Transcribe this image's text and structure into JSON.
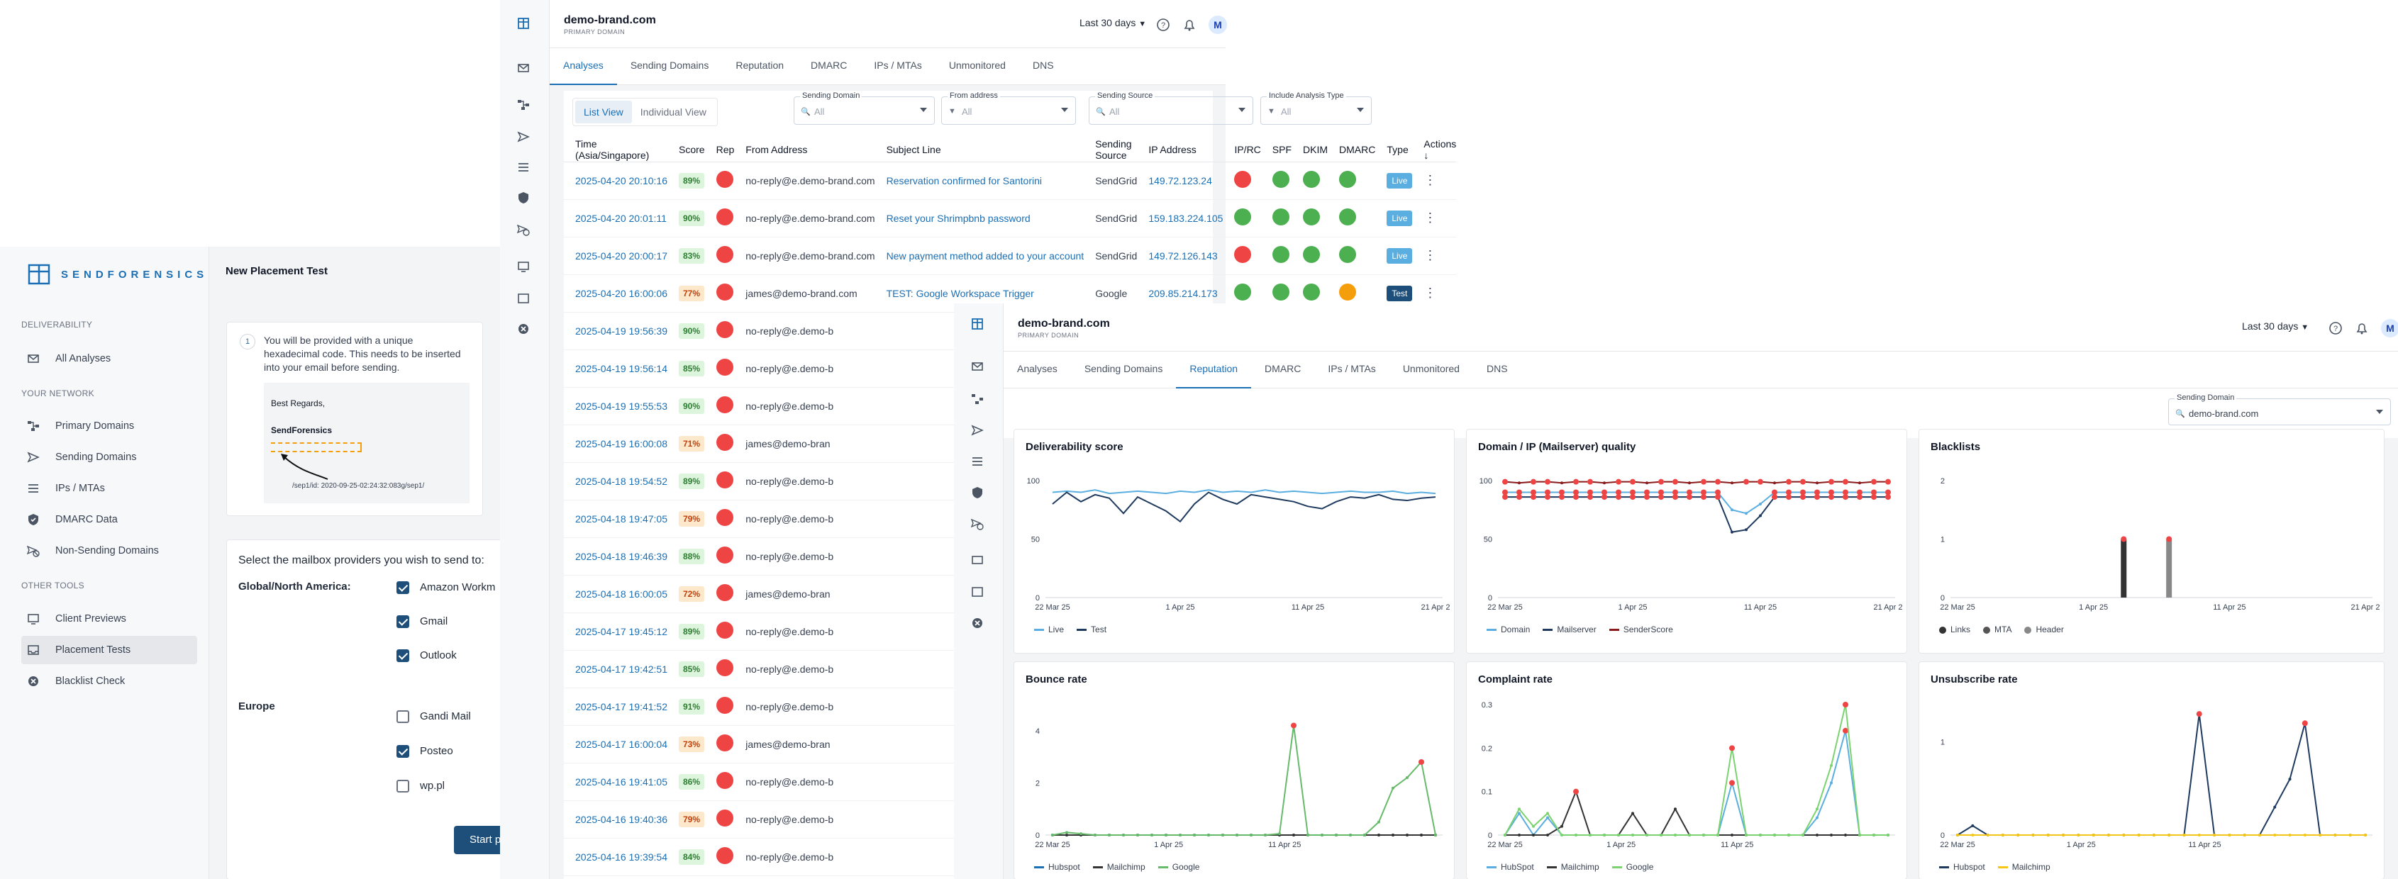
{
  "placement": {
    "logo_text": "SENDFORENSICS",
    "title": "New Placement Test",
    "sections": [
      "DELIVERABILITY",
      "YOUR NETWORK",
      "OTHER TOOLS"
    ],
    "nav": [
      {
        "label": "All Analyses",
        "icon": "envelope-icon"
      },
      {
        "label": "Primary Domains",
        "icon": "network-icon"
      },
      {
        "label": "Sending Domains",
        "icon": "send-icon"
      },
      {
        "label": "IPs / MTAs",
        "icon": "list-icon"
      },
      {
        "label": "DMARC Data",
        "icon": "shield-icon"
      },
      {
        "label": "Non-Sending Domains",
        "icon": "no-send-icon"
      },
      {
        "label": "Client Previews",
        "icon": "monitor-icon"
      },
      {
        "label": "Placement Tests",
        "icon": "inbox-icon"
      },
      {
        "label": "Blacklist Check",
        "icon": "blocked-icon"
      }
    ],
    "step_number": "1",
    "step_text": "You will be provided with a unique hexadecimal code. This needs to be inserted into your email before sending.",
    "example_regards": "Best Regards,",
    "example_company": "SendForensics",
    "example_code": "/sep1/id: 2020-09-25-02:24:32:083g/sep1/",
    "select_prompt": "Select the mailbox providers you wish to send to:",
    "groups": [
      {
        "name": "Global/North America:",
        "providers": [
          {
            "label": "Amazon Workm",
            "checked": true
          },
          {
            "label": "Gmail",
            "checked": true
          },
          {
            "label": "Outlook",
            "checked": true
          }
        ]
      },
      {
        "name": "Europe",
        "providers": [
          {
            "label": "Gandi Mail",
            "checked": false
          },
          {
            "label": "Posteo",
            "checked": true
          },
          {
            "label": "wp.pl",
            "checked": false
          }
        ]
      }
    ],
    "start_button": "Start p"
  },
  "analyses": {
    "domain": "demo-brand.com",
    "domain_sub": "PRIMARY DOMAIN",
    "range": "Last 30 days",
    "avatar": "M",
    "tabs": [
      "Analyses",
      "Sending Domains",
      "Reputation",
      "DMARC",
      "IPs / MTAs",
      "Unmonitored",
      "DNS"
    ],
    "active_tab": "Analyses",
    "views": [
      "List View",
      "Individual View"
    ],
    "filters": [
      {
        "label": "Sending Domain",
        "value": "All",
        "icon": "search-icon"
      },
      {
        "label": "From address",
        "value": "All",
        "icon": "filter-icon"
      },
      {
        "label": "Sending Source",
        "value": "All",
        "icon": "search-icon"
      },
      {
        "label": "Include Analysis Type",
        "value": "All",
        "icon": "filter-icon"
      }
    ],
    "columns": [
      "Time (Asia/Singapore)",
      "Score",
      "Rep",
      "From Address",
      "Subject Line",
      "Sending Source",
      "IP Address",
      "IP/RC",
      "SPF",
      "DKIM",
      "DMARC",
      "Type",
      "Actions"
    ],
    "rows": [
      {
        "time": "2025-04-20 20:10:16",
        "score": "89%",
        "from": "no-reply@e.demo-brand.com",
        "subject": "Reservation confirmed for Santorini",
        "source": "SendGrid",
        "ip": "149.72.123.24",
        "iprc": "red",
        "spf": "green",
        "dkim": "green",
        "dmarc": "green",
        "type": "Live"
      },
      {
        "time": "2025-04-20 20:01:11",
        "score": "90%",
        "from": "no-reply@e.demo-brand.com",
        "subject": "Reset your Shrimpbnb password",
        "source": "SendGrid",
        "ip": "159.183.224.105",
        "iprc": "green",
        "spf": "green",
        "dkim": "green",
        "dmarc": "green",
        "type": "Live"
      },
      {
        "time": "2025-04-20 20:00:17",
        "score": "83%",
        "from": "no-reply@e.demo-brand.com",
        "subject": "New payment method added to your account",
        "source": "SendGrid",
        "ip": "149.72.126.143",
        "iprc": "red",
        "spf": "green",
        "dkim": "green",
        "dmarc": "green",
        "type": "Live"
      },
      {
        "time": "2025-04-20 16:00:06",
        "score": "77%",
        "from": "james@demo-brand.com",
        "subject": "TEST: Google Workspace Trigger",
        "source": "Google",
        "ip": "209.85.214.173",
        "iprc": "green",
        "spf": "green",
        "dkim": "green",
        "dmarc": "orange",
        "type": "Test"
      },
      {
        "time": "2025-04-19 19:56:39",
        "score": "90%",
        "from": "no-reply@e.demo-b"
      },
      {
        "time": "2025-04-19 19:56:14",
        "score": "85%",
        "from": "no-reply@e.demo-b"
      },
      {
        "time": "2025-04-19 19:55:53",
        "score": "90%",
        "from": "no-reply@e.demo-b"
      },
      {
        "time": "2025-04-19 16:00:08",
        "score": "71%",
        "from": "james@demo-bran"
      },
      {
        "time": "2025-04-18 19:54:52",
        "score": "89%",
        "from": "no-reply@e.demo-b"
      },
      {
        "time": "2025-04-18 19:47:05",
        "score": "79%",
        "from": "no-reply@e.demo-b"
      },
      {
        "time": "2025-04-18 19:46:39",
        "score": "88%",
        "from": "no-reply@e.demo-b"
      },
      {
        "time": "2025-04-18 16:00:05",
        "score": "72%",
        "from": "james@demo-bran"
      },
      {
        "time": "2025-04-17 19:45:12",
        "score": "89%",
        "from": "no-reply@e.demo-b"
      },
      {
        "time": "2025-04-17 19:42:51",
        "score": "85%",
        "from": "no-reply@e.demo-b"
      },
      {
        "time": "2025-04-17 19:41:52",
        "score": "91%",
        "from": "no-reply@e.demo-b"
      },
      {
        "time": "2025-04-17 16:00:04",
        "score": "73%",
        "from": "james@demo-bran"
      },
      {
        "time": "2025-04-16 19:41:05",
        "score": "86%",
        "from": "no-reply@e.demo-b"
      },
      {
        "time": "2025-04-16 19:40:36",
        "score": "79%",
        "from": "no-reply@e.demo-b"
      },
      {
        "time": "2025-04-16 19:39:54",
        "score": "84%",
        "from": "no-reply@e.demo-b"
      }
    ],
    "status_colors": {
      "red": "#ef4444",
      "green": "#4caf50",
      "orange": "#f59e0b",
      "live": "#5aaee0",
      "test": "#1e4f7a"
    }
  },
  "reputation": {
    "domain": "demo-brand.com",
    "domain_sub": "PRIMARY DOMAIN",
    "range": "Last 30 days",
    "avatar": "M",
    "tabs": [
      "Analyses",
      "Sending Domains",
      "Reputation",
      "DMARC",
      "IPs / MTAs",
      "Unmonitored",
      "DNS"
    ],
    "active_tab": "Reputation",
    "filter": {
      "label": "Sending Domain",
      "value": "demo-brand.com"
    }
  },
  "chart_data": [
    {
      "type": "line",
      "title": "Deliverability score",
      "x_ticks": [
        "22 Mar 25",
        "1 Apr 25",
        "11 Apr 25",
        "21 Apr 2"
      ],
      "y_ticks": [
        0,
        50,
        100
      ],
      "ylim": [
        0,
        100
      ],
      "series": [
        {
          "name": "Live",
          "color": "#5aaee0",
          "values": [
            90,
            91,
            90,
            92,
            89,
            90,
            91,
            90,
            89,
            91,
            90,
            92,
            90,
            91,
            90,
            92,
            90,
            91,
            90,
            89,
            90,
            91,
            90,
            90,
            91,
            89,
            90,
            89
          ]
        },
        {
          "name": "Test",
          "color": "#1e3a5f",
          "values": [
            80,
            90,
            82,
            88,
            85,
            72,
            86,
            80,
            74,
            65,
            80,
            90,
            84,
            80,
            88,
            86,
            84,
            82,
            78,
            76,
            82,
            86,
            85,
            88,
            84,
            83,
            85,
            86
          ]
        }
      ]
    },
    {
      "type": "line",
      "title": "Domain / IP (Mailserver) quality",
      "x_ticks": [
        "22 Mar 25",
        "1 Apr 25",
        "11 Apr 25",
        "21 Apr 2"
      ],
      "y_ticks": [
        0,
        50,
        100
      ],
      "ylim": [
        0,
        100
      ],
      "series": [
        {
          "name": "Domain",
          "color": "#5aaee0",
          "values": [
            90,
            90,
            90,
            90,
            90,
            90,
            90,
            90,
            90,
            90,
            90,
            90,
            90,
            90,
            90,
            90,
            75,
            72,
            80,
            90,
            90,
            90,
            90,
            90,
            90,
            90,
            90,
            90
          ]
        },
        {
          "name": "Mailserver",
          "color": "#1e3a5f",
          "values": [
            86,
            86,
            86,
            86,
            86,
            86,
            86,
            86,
            86,
            86,
            86,
            86,
            86,
            86,
            86,
            86,
            56,
            58,
            70,
            86,
            86,
            86,
            86,
            86,
            86,
            86,
            86,
            86
          ]
        },
        {
          "name": "SenderScore",
          "color": "#8b1a1a",
          "values": [
            99,
            98,
            99,
            99,
            98,
            99,
            99,
            98,
            99,
            99,
            98,
            99,
            99,
            98,
            99,
            99,
            98,
            99,
            99,
            98,
            99,
            99,
            98,
            99,
            99,
            98,
            99,
            99
          ]
        }
      ]
    },
    {
      "type": "bar",
      "title": "Blacklists",
      "x_ticks": [
        "22 Mar 25",
        "1 Apr 25",
        "11 Apr 25",
        "21 Apr 2"
      ],
      "y_ticks": [
        0,
        1,
        2
      ],
      "ylim": [
        0,
        2
      ],
      "series": [
        {
          "name": "Links",
          "color": "#333333",
          "values": [
            0,
            0,
            0,
            0,
            0,
            0,
            0,
            0,
            0,
            0,
            0,
            1,
            0,
            0,
            0,
            0,
            0,
            0,
            0,
            0,
            0,
            0,
            0,
            0,
            0,
            0,
            0,
            0
          ]
        },
        {
          "name": "MTA",
          "color": "#555555",
          "values": [
            0,
            0,
            0,
            0,
            0,
            0,
            0,
            0,
            0,
            0,
            0,
            0,
            0,
            0,
            0,
            0,
            0,
            0,
            0,
            0,
            0,
            0,
            0,
            0,
            0,
            0,
            0,
            0
          ]
        },
        {
          "name": "Header",
          "color": "#888888",
          "values": [
            0,
            0,
            0,
            0,
            0,
            0,
            0,
            0,
            0,
            0,
            0,
            0,
            0,
            0,
            1,
            0,
            0,
            0,
            0,
            0,
            0,
            0,
            0,
            0,
            0,
            0,
            0,
            0
          ]
        }
      ]
    },
    {
      "type": "line",
      "title": "Bounce rate",
      "x_ticks": [
        "22 Mar 25",
        "1 Apr 25",
        "11 Apr 25"
      ],
      "y_ticks": [
        0,
        2,
        4
      ],
      "ylim": [
        0,
        5
      ],
      "series": [
        {
          "name": "Hubspot",
          "color": "#1b6fb5",
          "values": [
            0,
            0,
            0,
            0,
            0,
            0,
            0,
            0,
            0,
            0,
            0,
            0,
            0,
            0,
            0,
            0,
            0,
            0,
            0,
            0,
            0,
            0,
            0,
            0,
            0,
            0,
            0,
            0
          ]
        },
        {
          "name": "Mailchimp",
          "color": "#333333",
          "values": [
            0,
            0,
            0,
            0,
            0,
            0,
            0,
            0,
            0,
            0,
            0,
            0,
            0,
            0,
            0,
            0,
            0,
            0,
            0,
            0,
            0,
            0,
            0,
            0,
            0,
            0,
            0,
            0
          ]
        },
        {
          "name": "Google",
          "color": "#66bb6a",
          "values": [
            0,
            0.1,
            0.05,
            0,
            0,
            0,
            0,
            0,
            0,
            0,
            0,
            0,
            0,
            0,
            0,
            0,
            0.05,
            4.2,
            0,
            0,
            0,
            0,
            0,
            0.5,
            1.8,
            2.2,
            2.8,
            0
          ]
        }
      ]
    },
    {
      "type": "line",
      "title": "Complaint rate",
      "x_ticks": [
        "22 Mar 25",
        "1 Apr 25",
        "11 Apr 25"
      ],
      "y_ticks": [
        0,
        0.1,
        0.2,
        0.3
      ],
      "ylim": [
        0,
        0.3
      ],
      "series": [
        {
          "name": "HubSpot",
          "color": "#5aaee0",
          "values": [
            0,
            0.05,
            0,
            0.04,
            0,
            0,
            0,
            0,
            0,
            0,
            0,
            0,
            0,
            0,
            0,
            0,
            0.12,
            0,
            0,
            0,
            0,
            0,
            0.04,
            0.12,
            0.24,
            0,
            0,
            0
          ]
        },
        {
          "name": "Mailchimp",
          "color": "#333333",
          "values": [
            0,
            0,
            0,
            0,
            0.02,
            0.1,
            0,
            0,
            0,
            0.05,
            0,
            0,
            0.06,
            0,
            0,
            0,
            0,
            0,
            0,
            0,
            0,
            0,
            0,
            0,
            0,
            0,
            0,
            0
          ]
        },
        {
          "name": "Google",
          "color": "#7bd36f",
          "values": [
            0,
            0.06,
            0.02,
            0.05,
            0,
            0,
            0,
            0,
            0,
            0,
            0,
            0,
            0,
            0,
            0,
            0,
            0.2,
            0,
            0,
            0,
            0,
            0,
            0.06,
            0.16,
            0.3,
            0,
            0,
            0
          ]
        }
      ]
    },
    {
      "type": "line",
      "title": "Unsubscribe rate",
      "x_ticks": [
        "22 Mar 25",
        "1 Apr 25",
        "11 Apr 25"
      ],
      "y_ticks": [
        0,
        1
      ],
      "ylim": [
        0,
        1.4
      ],
      "series": [
        {
          "name": "Hubspot",
          "color": "#1e3a5f",
          "values": [
            0,
            0.1,
            0,
            0,
            0,
            0,
            0,
            0,
            0,
            0,
            0,
            0,
            0,
            0,
            0,
            0,
            1.3,
            0,
            0,
            0,
            0,
            0.3,
            0.6,
            1.2,
            0,
            0,
            0,
            0
          ]
        },
        {
          "name": "Mailchimp",
          "color": "#f5c518",
          "values": [
            0,
            0,
            0,
            0,
            0,
            0,
            0,
            0,
            0,
            0,
            0,
            0,
            0,
            0,
            0,
            0,
            0,
            0,
            0,
            0,
            0,
            0,
            0,
            0,
            0,
            0,
            0,
            0
          ]
        }
      ]
    }
  ]
}
